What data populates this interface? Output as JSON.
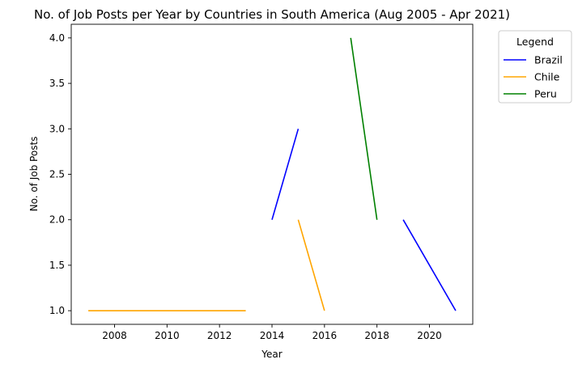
{
  "chart_data": {
    "type": "line",
    "title": "No. of Job Posts per Year by Countries in South America (Aug 2005 - Apr 2021)",
    "xlabel": "Year",
    "ylabel": "No. of Job Posts",
    "xlim": [
      2006.35,
      2021.65
    ],
    "ylim": [
      0.85,
      4.15
    ],
    "xticks": [
      2008,
      2010,
      2012,
      2014,
      2016,
      2018,
      2020
    ],
    "xtick_labels": [
      "2008",
      "2010",
      "2012",
      "2014",
      "2016",
      "2018",
      "2020"
    ],
    "yticks": [
      1.0,
      1.5,
      2.0,
      2.5,
      3.0,
      3.5,
      4.0
    ],
    "ytick_labels": [
      "1.0",
      "1.5",
      "2.0",
      "2.5",
      "3.0",
      "3.5",
      "4.0"
    ],
    "grid": false,
    "legend": {
      "title": "Legend",
      "placement": "outside-top-right"
    },
    "series": [
      {
        "name": "Brazil",
        "color": "#0000ff",
        "segments": [
          [
            [
              2014,
              2
            ],
            [
              2015,
              3
            ]
          ],
          [
            [
              2019,
              2
            ],
            [
              2021,
              1
            ]
          ]
        ]
      },
      {
        "name": "Chile",
        "color": "#ffa500",
        "segments": [
          [
            [
              2007,
              1
            ],
            [
              2013,
              1
            ]
          ],
          [
            [
              2015,
              2
            ],
            [
              2016,
              1
            ]
          ]
        ]
      },
      {
        "name": "Peru",
        "color": "#008000",
        "segments": [
          [
            [
              2017,
              4
            ],
            [
              2018,
              2
            ]
          ]
        ]
      }
    ]
  }
}
